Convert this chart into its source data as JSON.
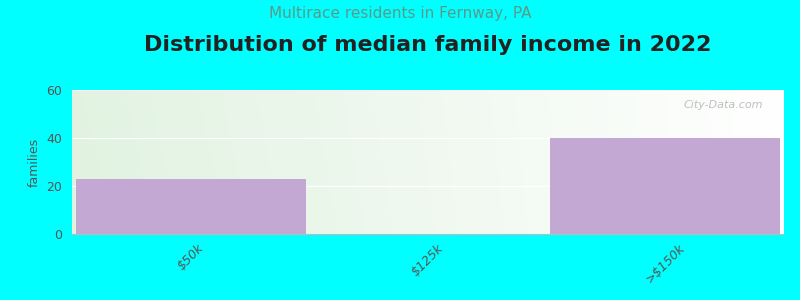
{
  "title": "Distribution of median family income in 2022",
  "subtitle": "Multirace residents in Fernway, PA",
  "categories": [
    "$50k",
    "$125k",
    ">$150k"
  ],
  "values": [
    23,
    0,
    40
  ],
  "bar_color": "#c4a8d4",
  "background_color": "#00ffff",
  "ylabel": "families",
  "ylim": [
    0,
    60
  ],
  "yticks": [
    0,
    20,
    40,
    60
  ],
  "watermark": "City-Data.com",
  "title_fontsize": 16,
  "subtitle_fontsize": 11,
  "subtitle_color": "#5a9a8a",
  "title_color": "#222222",
  "grid_color": "#e0e0e0",
  "tick_color": "#555555"
}
